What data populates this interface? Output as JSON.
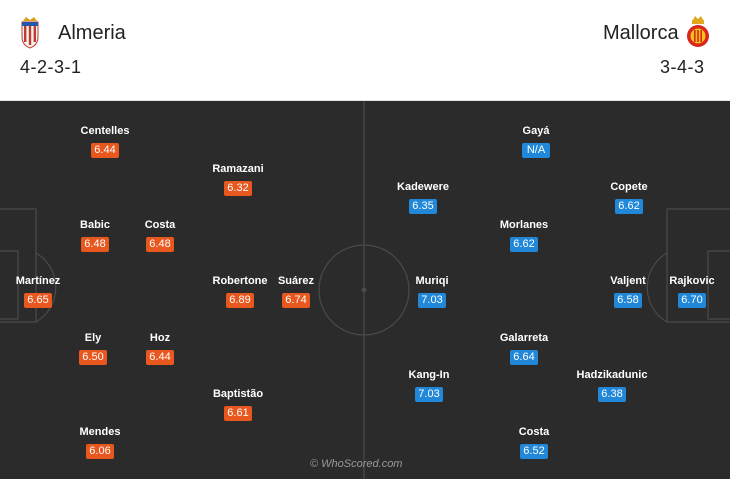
{
  "home": {
    "name": "Almeria",
    "formation": "4-2-3-1",
    "crest_icon": "almeria-crest-icon",
    "color": "#e8571e"
  },
  "away": {
    "name": "Mallorca",
    "formation": "3-4-3",
    "crest_icon": "mallorca-crest-icon",
    "color": "#2188d9"
  },
  "players": [
    {
      "team": "home",
      "name": "Centelles",
      "rating": "6.44"
    },
    {
      "team": "home",
      "name": "Ramazani",
      "rating": "6.32"
    },
    {
      "team": "home",
      "name": "Babic",
      "rating": "6.48"
    },
    {
      "team": "home",
      "name": "Costa",
      "rating": "6.48"
    },
    {
      "team": "home",
      "name": "Martínez",
      "rating": "6.65"
    },
    {
      "team": "home",
      "name": "Robertone",
      "rating": "6.89"
    },
    {
      "team": "home",
      "name": "Suárez",
      "rating": "6.74"
    },
    {
      "team": "home",
      "name": "Ely",
      "rating": "6.50"
    },
    {
      "team": "home",
      "name": "Hoz",
      "rating": "6.44"
    },
    {
      "team": "home",
      "name": "Baptistão",
      "rating": "6.61"
    },
    {
      "team": "home",
      "name": "Mendes",
      "rating": "6.06"
    },
    {
      "team": "away",
      "name": "Gayá",
      "rating": "N/A"
    },
    {
      "team": "away",
      "name": "Kadewere",
      "rating": "6.35"
    },
    {
      "team": "away",
      "name": "Copete",
      "rating": "6.62"
    },
    {
      "team": "away",
      "name": "Morlanes",
      "rating": "6.62"
    },
    {
      "team": "away",
      "name": "Muriqi",
      "rating": "7.03"
    },
    {
      "team": "away",
      "name": "Valjent",
      "rating": "6.58"
    },
    {
      "team": "away",
      "name": "Rajkovic",
      "rating": "6.70"
    },
    {
      "team": "away",
      "name": "Galarreta",
      "rating": "6.64"
    },
    {
      "team": "away",
      "name": "Kang-In",
      "rating": "7.03"
    },
    {
      "team": "away",
      "name": "Hadzikadunic",
      "rating": "6.38"
    },
    {
      "team": "away",
      "name": "Costa",
      "rating": "6.52"
    }
  ],
  "watermark": "© WhoScored.com"
}
